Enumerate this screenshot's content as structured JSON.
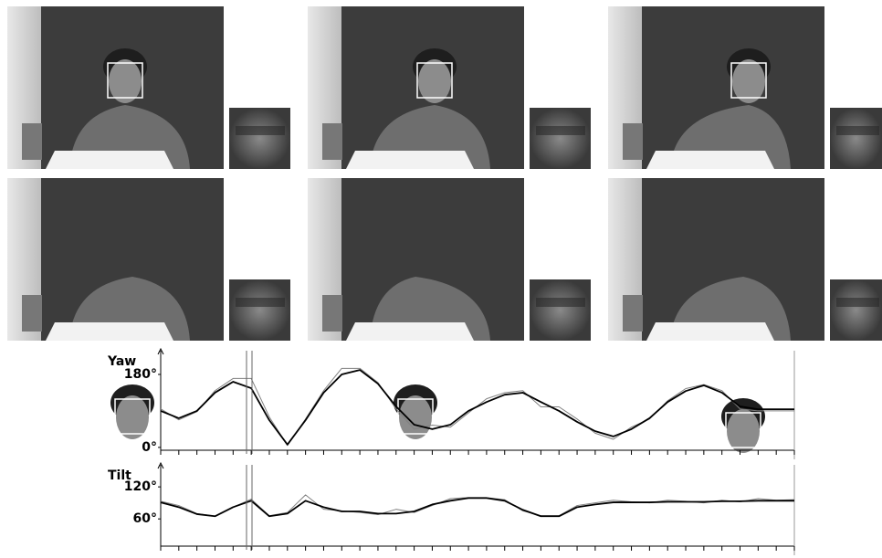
{
  "chart_data": [
    {
      "type": "line",
      "title": "Yaw",
      "x": [
        0,
        1,
        2,
        3,
        4,
        5,
        6,
        7,
        8,
        9,
        10,
        11,
        12,
        13,
        14,
        15,
        16,
        17,
        18,
        19,
        20,
        21,
        22,
        23,
        24,
        25,
        26,
        27,
        28,
        29,
        30,
        31,
        32,
        33,
        34,
        35
      ],
      "xlim": [
        0,
        35
      ],
      "series": [
        {
          "color": "#808080",
          "values": [
            95,
            68,
            88,
            140,
            170,
            170,
            75,
            5,
            70,
            140,
            195,
            195,
            160,
            95,
            45,
            55,
            50,
            85,
            120,
            135,
            140,
            100,
            100,
            70,
            35,
            20,
            50,
            70,
            115,
            145,
            155,
            140,
            95,
            90,
            90,
            90
          ]
        },
        {
          "color": "#000000",
          "values": [
            90,
            72,
            90,
            135,
            162,
            146,
            67,
            7,
            67,
            135,
            180,
            191,
            157,
            101,
            56,
            45,
            56,
            90,
            112,
            130,
            135,
            112,
            90,
            63,
            40,
            27,
            45,
            72,
            112,
            139,
            153,
            135,
            101,
            94,
            94,
            94
          ]
        }
      ],
      "ylim": [
        -7,
        225
      ],
      "yticks": [
        {
          "value": 0,
          "label": "0°"
        },
        {
          "value": 180,
          "label": "180°"
        }
      ]
    },
    {
      "type": "line",
      "title": "Tilt",
      "x": [
        0,
        1,
        2,
        3,
        4,
        5,
        6,
        7,
        8,
        9,
        10,
        11,
        12,
        13,
        14,
        15,
        16,
        17,
        18,
        19,
        20,
        21,
        22,
        23,
        24,
        25,
        26,
        27,
        28,
        29,
        30,
        31,
        32,
        33,
        34,
        35
      ],
      "xlim": [
        0,
        35
      ],
      "series": [
        {
          "color": "#808080",
          "values": [
            93,
            85,
            70,
            65,
            82,
            97,
            66,
            72,
            105,
            78,
            75,
            72,
            68,
            78,
            72,
            85,
            98,
            100,
            100,
            96,
            75,
            66,
            66,
            85,
            90,
            95,
            92,
            90,
            95,
            93,
            90,
            95,
            92,
            98,
            95,
            96
          ]
        },
        {
          "color": "#000000",
          "values": [
            91,
            82,
            69,
            65,
            82,
            94,
            65,
            70,
            94,
            82,
            74,
            74,
            70,
            70,
            74,
            87,
            94,
            99,
            99,
            94,
            77,
            65,
            65,
            82,
            87,
            91,
            91,
            91,
            92,
            92,
            92,
            93,
            93,
            94,
            94,
            94
          ]
        }
      ],
      "ylim": [
        9,
        151
      ],
      "yticks": [
        {
          "value": 60,
          "label": "60°"
        },
        {
          "value": 120,
          "label": "120°"
        }
      ]
    }
  ]
}
